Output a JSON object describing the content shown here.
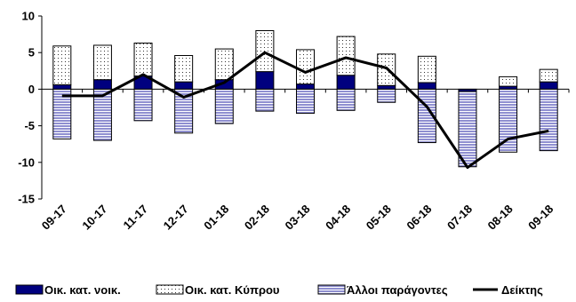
{
  "chart_data": {
    "type": "bar",
    "stacked": true,
    "title": "",
    "xlabel": "",
    "ylabel": "",
    "categories": [
      "09-17",
      "10-17",
      "11-17",
      "12-17",
      "01-18",
      "02-18",
      "03-18",
      "04-18",
      "05-18",
      "06-18",
      "07-18",
      "08-18",
      "09-18"
    ],
    "ylim": [
      -15,
      10
    ],
    "yticks": [
      10,
      5,
      0,
      -5,
      -10,
      -15
    ],
    "grid": false,
    "legend_position": "bottom",
    "series": [
      {
        "name": "Οικ. κατ. νοικ.",
        "type": "bar",
        "color": "#00007f",
        "values": [
          0.6,
          1.3,
          1.8,
          1.0,
          1.3,
          2.4,
          0.7,
          1.9,
          0.5,
          0.9,
          -0.3,
          0.4,
          1.0
        ]
      },
      {
        "name": "Οικ. κατ. Κύπρου",
        "type": "bar",
        "color": "#ffffff",
        "values": [
          5.3,
          4.7,
          4.5,
          3.6,
          4.2,
          5.6,
          4.7,
          5.3,
          4.3,
          3.6,
          0.0,
          1.3,
          1.7
        ]
      },
      {
        "name": "Άλλοι παράγοντες",
        "type": "bar",
        "color": "#8f8fd0",
        "values": [
          -6.8,
          -7.0,
          -4.3,
          -6.0,
          -4.7,
          -3.0,
          -3.3,
          -2.9,
          -1.8,
          -7.3,
          -10.3,
          -8.6,
          -8.4
        ]
      },
      {
        "name": "Δείκτης",
        "type": "line",
        "color": "#000000",
        "values": [
          -0.9,
          -0.9,
          2.0,
          -1.1,
          0.9,
          5.0,
          2.3,
          4.3,
          2.9,
          -2.4,
          -10.7,
          -6.8,
          -5.7
        ]
      }
    ]
  }
}
